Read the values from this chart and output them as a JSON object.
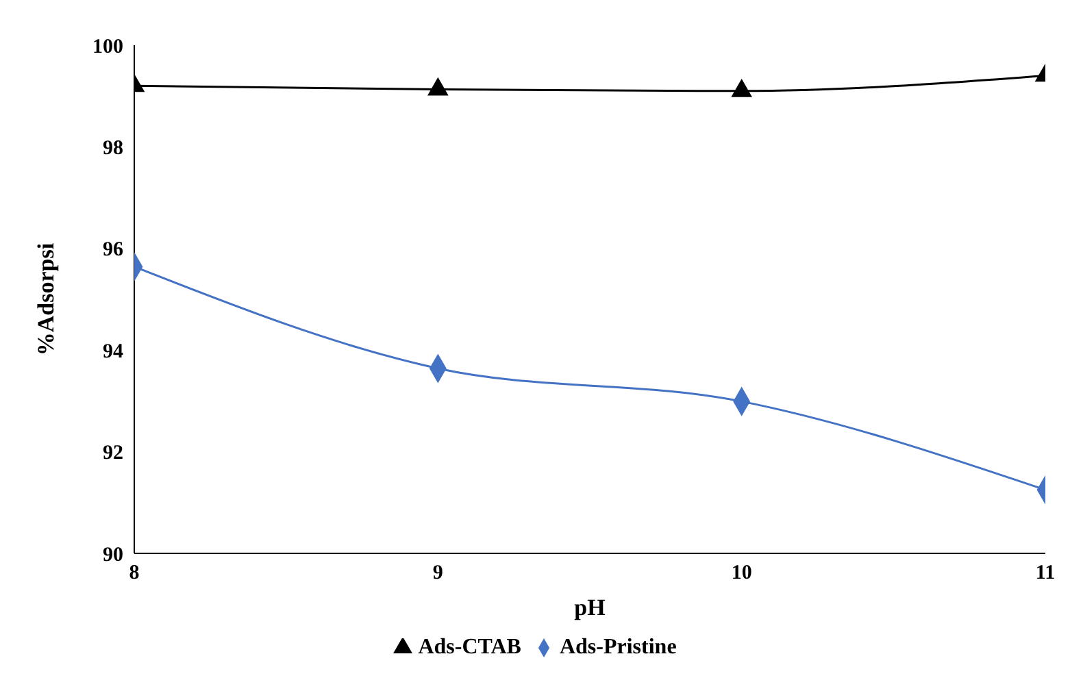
{
  "chart_data": {
    "type": "line",
    "xlabel": "pH",
    "ylabel": "%Adsorpsi",
    "x": [
      8,
      9,
      10,
      11
    ],
    "xlim": [
      8,
      11
    ],
    "xticks": [
      8,
      9,
      10,
      11
    ],
    "ylim": [
      90,
      100
    ],
    "yticks": [
      90,
      92,
      94,
      96,
      98,
      100
    ],
    "legend": "bottom",
    "line_style": "solid",
    "series": [
      {
        "name": "Ads-Pristine",
        "color": "#4472c4",
        "marker": "diamond",
        "values": [
          95.64,
          93.64,
          92.99,
          91.25
        ]
      },
      {
        "name": "Ads-CTAB",
        "color": "#000000",
        "marker": "triangle",
        "values": [
          99.2,
          99.13,
          99.1,
          99.4
        ]
      }
    ]
  }
}
